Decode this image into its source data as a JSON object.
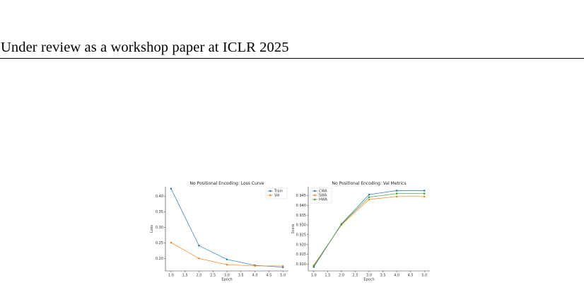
{
  "header": {
    "text": "Under review as a workshop paper at ICLR 2025"
  },
  "chart_data": [
    {
      "type": "line",
      "title": "No Positional Encoding: Loss Curve",
      "xlabel": "Epoch",
      "ylabel": "Loss",
      "x": [
        1,
        2,
        3,
        4,
        5
      ],
      "xticks": [
        "1.0",
        "1.5",
        "2.0",
        "2.5",
        "3.0",
        "3.5",
        "4.0",
        "4.5",
        "5.0"
      ],
      "yticks": [
        "0.20",
        "0.25",
        "0.30",
        "0.35",
        "0.40"
      ],
      "xlim": [
        0.8,
        5.2
      ],
      "ylim": [
        0.16,
        0.43
      ],
      "legend_position": "top-right",
      "series": [
        {
          "name": "Train",
          "color": "#1f77b4",
          "values": [
            0.424,
            0.241,
            0.197,
            0.178,
            0.172
          ]
        },
        {
          "name": "Val",
          "color": "#ff7f0e",
          "values": [
            0.251,
            0.2,
            0.18,
            0.176,
            0.176
          ]
        }
      ]
    },
    {
      "type": "line",
      "title": "No Positional Encoding: Val Metrics",
      "xlabel": "Epoch",
      "ylabel": "Score",
      "x": [
        1,
        2,
        3,
        4,
        5
      ],
      "xticks": [
        "1.0",
        "1.5",
        "2.0",
        "2.5",
        "3.0",
        "3.5",
        "4.0",
        "4.5",
        "5.0"
      ],
      "yticks": [
        "0.910",
        "0.915",
        "0.920",
        "0.925",
        "0.930",
        "0.935",
        "0.940",
        "0.945"
      ],
      "xlim": [
        0.8,
        5.2
      ],
      "ylim": [
        0.9065,
        0.9495
      ],
      "legend_position": "top-left",
      "series": [
        {
          "name": "CWA",
          "color": "#1f77b4",
          "values": [
            0.9085,
            0.9305,
            0.9455,
            0.9475,
            0.9475
          ]
        },
        {
          "name": "SWA",
          "color": "#ff7f0e",
          "values": [
            0.9095,
            0.93,
            0.943,
            0.9445,
            0.9445
          ]
        },
        {
          "name": "HWA",
          "color": "#2ca02c",
          "values": [
            0.909,
            0.9303,
            0.9442,
            0.946,
            0.946
          ]
        }
      ]
    }
  ]
}
